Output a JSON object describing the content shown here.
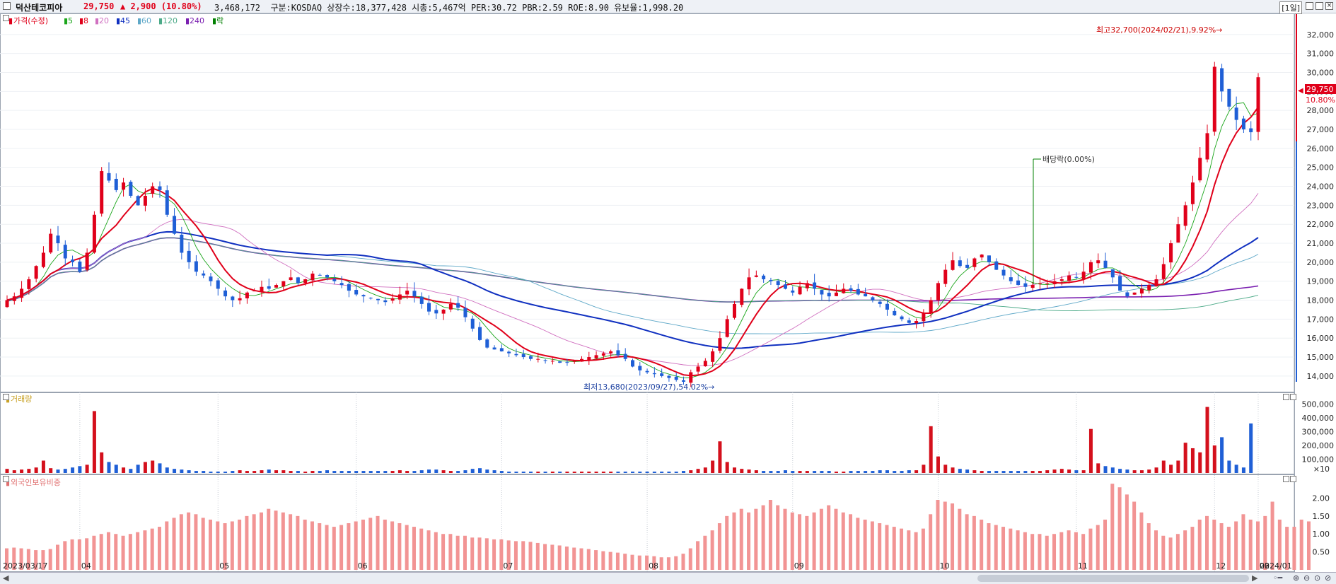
{
  "header": {
    "name": "덕산테코피아",
    "price": "29,750",
    "change": "▲ 2,900 (10.80%)",
    "info": "3,468,172  구분:KOSDAQ 상장수:18,377,428 시총:5,467억 PER:30.72 PBR:2.59 ROE:8.90 유보율:1,998.20",
    "period": "[1일]"
  },
  "legend": {
    "price_label": "가격(수정)",
    "ma": [
      {
        "label": "5",
        "color": "#1aa51a"
      },
      {
        "label": "8",
        "color": "#e0001a"
      },
      {
        "label": "20",
        "color": "#d070c0"
      },
      {
        "label": "45",
        "color": "#1030c0"
      },
      {
        "label": "60",
        "color": "#5fa8c8"
      },
      {
        "label": "120",
        "color": "#4caa88"
      },
      {
        "label": "240",
        "color": "#7a1fb0"
      },
      {
        "label": "락",
        "color": "#008000"
      }
    ],
    "volume_label": "거래량",
    "foreign_label": "외국인보유비중"
  },
  "annotations": {
    "high": "최고32,700(2024/02/21),9.92%→",
    "low": "최저13,680(2023/09/27),54.02%→",
    "dividend": "배당락(0.00%)",
    "last_price_tag": "29,750",
    "last_pct_tag": "10.80%"
  },
  "chart_data": {
    "type": "candlestick",
    "price_axis": {
      "ticks": [
        "32,000",
        "31,000",
        "30,000",
        "29,000",
        "28,000",
        "27,000",
        "26,000",
        "25,000",
        "24,000",
        "23,000",
        "22,000",
        "21,000",
        "20,000",
        "19,000",
        "18,000",
        "17,000",
        "16,000",
        "15,000",
        "14,000"
      ],
      "range": [
        13250,
        33000
      ]
    },
    "volume_axis": {
      "ticks": [
        "500,000",
        "400,000",
        "300,000",
        "200,000",
        "100,000"
      ],
      "unit": "×10",
      "range": [
        0,
        560000
      ]
    },
    "foreign_axis": {
      "ticks": [
        "2.00",
        "1.50",
        "1.00",
        "0.50"
      ],
      "range": [
        0,
        2.6
      ]
    },
    "date_labels": [
      "2023/03/17",
      "04",
      "05",
      "06",
      "07",
      "08",
      "09",
      "10",
      "11",
      "12",
      "2024/01",
      "02",
      "03"
    ],
    "key_points": [
      {
        "date": "2023/03/17",
        "price": 18000
      },
      {
        "date": "2023/04",
        "price": 24500
      },
      {
        "date": "2023/05",
        "price": 19500
      },
      {
        "date": "2023/06",
        "price": 18700
      },
      {
        "date": "2023/07",
        "price": 18500
      },
      {
        "date": "2023/08",
        "price": 15300
      },
      {
        "date": "2023/09/27",
        "price": 13680
      },
      {
        "date": "2023/10",
        "price": 19500
      },
      {
        "date": "2023/11",
        "price": 18500
      },
      {
        "date": "2023/12",
        "price": 16800
      },
      {
        "date": "2024/01",
        "price": 19000
      },
      {
        "date": "2024/02/21",
        "price": 32700
      },
      {
        "date": "2024/03",
        "price": 29750
      }
    ],
    "closes": [
      18000,
      18200,
      18600,
      19100,
      19800,
      20500,
      21500,
      21000,
      20200,
      20000,
      19500,
      20500,
      22500,
      24800,
      24300,
      23800,
      24200,
      23500,
      23000,
      23500,
      24000,
      23800,
      22500,
      21500,
      20500,
      20000,
      19500,
      19300,
      19000,
      18600,
      18200,
      18000,
      18100,
      18400,
      18500,
      18700,
      18600,
      18800,
      19000,
      19200,
      18900,
      19100,
      19400,
      19300,
      19200,
      19000,
      18800,
      18500,
      18300,
      18200,
      18100,
      18000,
      17900,
      18100,
      18300,
      18500,
      18200,
      17800,
      17400,
      17300,
      17500,
      17800,
      17600,
      17100,
      16500,
      15900,
      15500,
      15400,
      15300,
      15200,
      15100,
      15000,
      14900,
      14900,
      14800,
      14800,
      14700,
      14700,
      14800,
      14900,
      15000,
      15100,
      15200,
      15300,
      15100,
      14900,
      14500,
      14300,
      14200,
      14100,
      14000,
      13900,
      13800,
      13700,
      14200,
      14500,
      14800,
      15300,
      16000,
      17000,
      17800,
      18600,
      19200,
      19300,
      19100,
      19000,
      18800,
      18600,
      18400,
      18700,
      18900,
      18600,
      18300,
      18200,
      18400,
      18600,
      18500,
      18300,
      18200,
      18000,
      17800,
      17500,
      17200,
      17000,
      16800,
      16900,
      17300,
      18000,
      18900,
      19600,
      20100,
      19800,
      19700,
      20200,
      20400,
      20000,
      19600,
      19300,
      19000,
      18800,
      18700,
      18800,
      18900,
      18900,
      19000,
      19100,
      19300,
      19200,
      19500,
      20000,
      20100,
      19700,
      19200,
      18500,
      18200,
      18400,
      18600,
      18800,
      19100,
      19900,
      21000,
      22000,
      23000,
      24200,
      25500,
      26800,
      30300,
      29000,
      28200,
      27500,
      27000,
      26850,
      29750
    ],
    "foreign_ratio_pct": [
      0.6,
      0.62,
      0.6,
      0.58,
      0.55,
      0.55,
      0.58,
      0.7,
      0.8,
      0.85,
      0.85,
      0.88,
      0.95,
      1.0,
      1.05,
      1.0,
      0.95,
      1.0,
      1.05,
      1.1,
      1.15,
      1.2,
      1.35,
      1.45,
      1.55,
      1.6,
      1.55,
      1.45,
      1.4,
      1.35,
      1.3,
      1.35,
      1.4,
      1.5,
      1.55,
      1.6,
      1.7,
      1.65,
      1.6,
      1.55,
      1.5,
      1.4,
      1.35,
      1.3,
      1.25,
      1.2,
      1.25,
      1.3,
      1.35,
      1.4,
      1.45,
      1.5,
      1.4,
      1.35,
      1.3,
      1.25,
      1.2,
      1.15,
      1.1,
      1.05,
      1.0,
      1.0,
      0.95,
      0.95,
      0.9,
      0.9,
      0.88,
      0.85,
      0.85,
      0.82,
      0.8,
      0.8,
      0.78,
      0.75,
      0.72,
      0.7,
      0.68,
      0.65,
      0.62,
      0.6,
      0.58,
      0.55,
      0.52,
      0.5,
      0.48,
      0.45,
      0.42,
      0.4,
      0.4,
      0.38,
      0.35,
      0.35,
      0.38,
      0.45,
      0.6,
      0.8,
      0.95,
      1.1,
      1.3,
      1.5,
      1.6,
      1.7,
      1.6,
      1.7,
      1.8,
      1.95,
      1.8,
      1.7,
      1.6,
      1.55,
      1.5,
      1.6,
      1.7,
      1.8,
      1.7,
      1.6,
      1.55,
      1.45,
      1.4,
      1.35,
      1.3,
      1.25,
      1.2,
      1.15,
      1.1,
      1.05,
      1.15,
      1.55,
      1.95,
      1.9,
      1.85,
      1.7,
      1.55,
      1.5,
      1.4,
      1.3,
      1.25,
      1.2,
      1.15,
      1.1,
      1.05,
      1.0,
      1.0,
      0.95,
      1.0,
      1.05,
      1.1,
      1.05,
      1.0,
      1.15,
      1.25,
      1.4,
      2.4,
      2.3,
      2.1,
      1.9,
      1.6,
      1.3,
      1.1,
      0.95,
      0.9,
      1.0,
      1.1,
      1.2,
      1.4,
      1.5,
      1.4,
      1.3,
      1.2,
      1.35,
      1.55,
      1.4,
      1.35,
      1.5,
      1.9,
      1.4,
      1.2,
      1.2,
      1.4,
      1.35
    ],
    "volume": [
      30000,
      20000,
      25000,
      30000,
      40000,
      90000,
      35000,
      25000,
      30000,
      40000,
      50000,
      60000,
      450000,
      150000,
      80000,
      60000,
      40000,
      30000,
      60000,
      80000,
      90000,
      70000,
      40000,
      30000,
      25000,
      20000,
      15000,
      15000,
      10000,
      10000,
      10000,
      15000,
      20000,
      15000,
      15000,
      20000,
      25000,
      20000,
      20000,
      15000,
      15000,
      10000,
      15000,
      15000,
      20000,
      15000,
      15000,
      15000,
      15000,
      15000,
      15000,
      15000,
      15000,
      15000,
      20000,
      15000,
      15000,
      20000,
      25000,
      25000,
      20000,
      15000,
      15000,
      20000,
      30000,
      35000,
      25000,
      20000,
      15000,
      10000,
      10000,
      10000,
      10000,
      10000,
      10000,
      10000,
      10000,
      10000,
      10000,
      10000,
      10000,
      10000,
      10000,
      10000,
      10000,
      10000,
      10000,
      10000,
      10000,
      10000,
      10000,
      10000,
      10000,
      15000,
      20000,
      30000,
      40000,
      90000,
      230000,
      80000,
      40000,
      30000,
      25000,
      20000,
      15000,
      15000,
      15000,
      20000,
      15000,
      15000,
      15000,
      15000,
      15000,
      15000,
      10000,
      10000,
      15000,
      15000,
      15000,
      15000,
      20000,
      20000,
      15000,
      15000,
      20000,
      20000,
      60000,
      340000,
      120000,
      60000,
      40000,
      30000,
      25000,
      20000,
      15000,
      15000,
      15000,
      15000,
      15000,
      15000,
      15000,
      15000,
      15000,
      20000,
      25000,
      30000,
      25000,
      20000,
      20000,
      320000,
      70000,
      50000,
      40000,
      30000,
      25000,
      20000,
      20000,
      25000,
      40000,
      90000,
      60000,
      90000,
      220000,
      180000,
      150000,
      480000,
      200000,
      260000,
      90000,
      60000,
      40000,
      360000
    ]
  }
}
